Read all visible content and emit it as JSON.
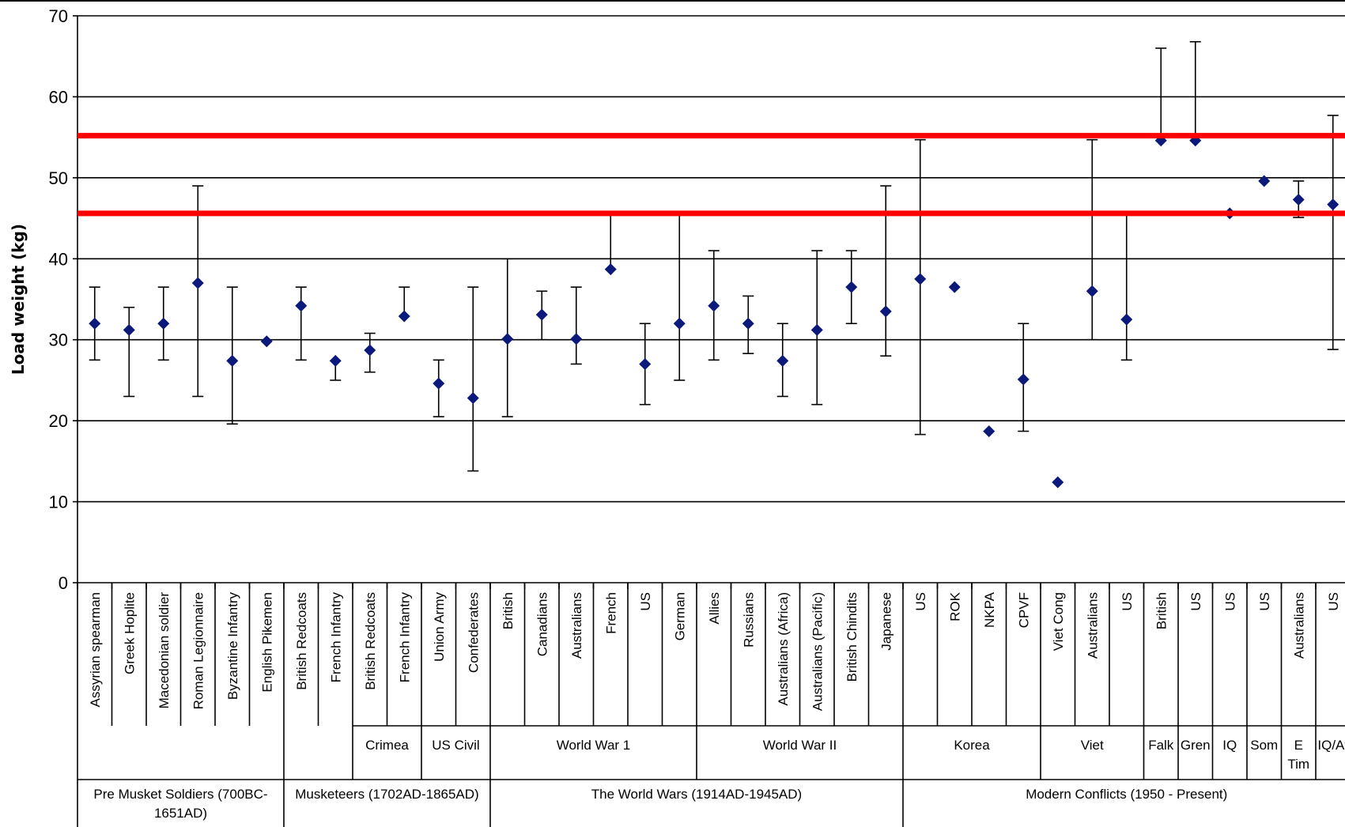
{
  "chart_data": {
    "type": "scatter",
    "ylabel": "Load weight (kg)",
    "xlabel": "",
    "ylim": [
      0,
      70
    ],
    "yticks": [
      0,
      10,
      20,
      30,
      40,
      50,
      60,
      70
    ],
    "grid": true,
    "reference_lines": [
      {
        "y": 55.2,
        "color": "#ff0000"
      },
      {
        "y": 45.6,
        "color": "#ff0000"
      }
    ],
    "points": [
      {
        "label": "Assyrian spearman",
        "value": 32,
        "low": 27.5,
        "high": 36.5
      },
      {
        "label": "Greek Hoplite",
        "value": 31.2,
        "low": 23,
        "high": 34
      },
      {
        "label": "Macedonian soldier",
        "value": 32,
        "low": 27.5,
        "high": 36.5
      },
      {
        "label": "Roman Legionnaire",
        "value": 37,
        "low": 23,
        "high": 49
      },
      {
        "label": "Byzantine Infantry",
        "value": 27.4,
        "low": 19.6,
        "high": 36.5
      },
      {
        "label": "English Pikemen",
        "value": 29.8,
        "low": null,
        "high": null
      },
      {
        "label": "British Redcoats",
        "value": 34.2,
        "low": 27.5,
        "high": 36.5
      },
      {
        "label": "French Infantry",
        "value": 27.4,
        "low": 25,
        "high": null
      },
      {
        "label": "British Redcoats",
        "value": 28.7,
        "low": 26,
        "high": 30.8
      },
      {
        "label": "French Infantry",
        "value": 32.9,
        "low": null,
        "high": 36.5
      },
      {
        "label": "Union Army",
        "value": 24.6,
        "low": 20.5,
        "high": 27.5
      },
      {
        "label": "Confederates",
        "value": 22.8,
        "low": 13.8,
        "high": 36.5
      },
      {
        "label": "British",
        "value": 30.1,
        "low": 20.5,
        "high": 40
      },
      {
        "label": "Canadians",
        "value": 33.1,
        "low": 30,
        "high": 36
      },
      {
        "label": "Australians",
        "value": 30.1,
        "low": 27,
        "high": 36.5
      },
      {
        "label": "French",
        "value": 38.7,
        "low": null,
        "high": 45.6
      },
      {
        "label": "US",
        "value": 27,
        "low": 22,
        "high": 32
      },
      {
        "label": "German",
        "value": 32,
        "low": 25,
        "high": 45.6
      },
      {
        "label": "Allies",
        "value": 34.2,
        "low": 27.5,
        "high": 41
      },
      {
        "label": "Russians",
        "value": 32,
        "low": 28.3,
        "high": 35.4
      },
      {
        "label": "Australians (Africa)",
        "value": 27.4,
        "low": 23,
        "high": 32
      },
      {
        "label": "Australians (Pacific)",
        "value": 31.2,
        "low": 22,
        "high": 41
      },
      {
        "label": "British Chindits",
        "value": 36.5,
        "low": 32,
        "high": 41
      },
      {
        "label": "Japanese",
        "value": 33.5,
        "low": 28,
        "high": 49
      },
      {
        "label": "US",
        "value": 37.5,
        "low": 18.3,
        "high": 54.7
      },
      {
        "label": "ROK",
        "value": 36.5,
        "low": null,
        "high": null
      },
      {
        "label": "NKPA",
        "value": 18.7,
        "low": null,
        "high": null
      },
      {
        "label": "CPVF",
        "value": 25.1,
        "low": 18.7,
        "high": 32
      },
      {
        "label": "Viet Cong",
        "value": 12.4,
        "low": null,
        "high": null
      },
      {
        "label": "Australians",
        "value": 36,
        "low": 30,
        "high": 54.7
      },
      {
        "label": "US",
        "value": 32.5,
        "low": 27.5,
        "high": 45.6
      },
      {
        "label": "British",
        "value": 54.6,
        "low": null,
        "high": 66
      },
      {
        "label": "US",
        "value": 54.6,
        "low": null,
        "high": 66.8
      },
      {
        "label": "US",
        "value": 45.6,
        "low": null,
        "high": null
      },
      {
        "label": "US",
        "value": 49.6,
        "low": null,
        "high": null
      },
      {
        "label": "Australians",
        "value": 47.3,
        "low": 45.1,
        "high": 49.6
      },
      {
        "label": "US",
        "value": 46.7,
        "low": 28.8,
        "high": 57.7
      }
    ],
    "subgroups": [
      {
        "label": "Crimea",
        "start": 8,
        "end": 9
      },
      {
        "label": "US Civil",
        "start": 10,
        "end": 11
      },
      {
        "label": "World War 1",
        "start": 12,
        "end": 17
      },
      {
        "label": "World War II",
        "start": 18,
        "end": 23
      },
      {
        "label": "Korea",
        "start": 24,
        "end": 27
      },
      {
        "label": "Viet",
        "start": 28,
        "end": 30
      },
      {
        "label": "Falk",
        "start": 31,
        "end": 31
      },
      {
        "label": "Gren",
        "start": 32,
        "end": 32
      },
      {
        "label": "IQ",
        "start": 33,
        "end": 33
      },
      {
        "label": "Som",
        "start": 34,
        "end": 34
      },
      {
        "label": "E Tim",
        "start": 35,
        "end": 35
      },
      {
        "label": "IQ/Af",
        "start": 36,
        "end": 36
      }
    ],
    "eras": [
      {
        "label": "Pre Musket Soldiers (700BC-1651AD)",
        "start": 0,
        "end": 5
      },
      {
        "label": "Musketeers (1702AD-1865AD)",
        "start": 6,
        "end": 11
      },
      {
        "label": "The World Wars (1914AD-1945AD)",
        "start": 12,
        "end": 23
      },
      {
        "label": "Modern Conflicts (1950 - Present)",
        "start": 24,
        "end": 36
      }
    ]
  }
}
